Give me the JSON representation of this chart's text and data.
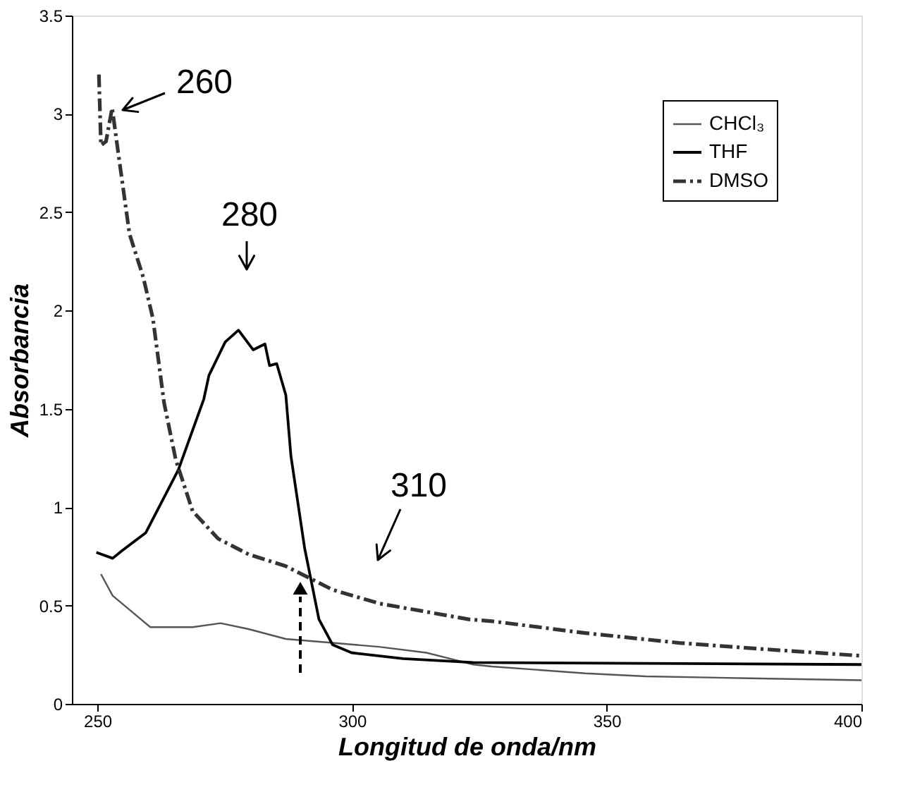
{
  "chart_data": {
    "type": "line",
    "xlabel": "Longitud de onda/nm",
    "ylabel": "Absorbancia",
    "xlim": [
      245,
      400
    ],
    "xticks": [
      250,
      300,
      350,
      400
    ],
    "ylim": [
      0,
      3.5
    ],
    "yticks": [
      0,
      0.5,
      1,
      1.5,
      2,
      2.5,
      3,
      3.5
    ],
    "grid": false,
    "legend": "top right",
    "series": [
      {
        "name": "CHCl₃",
        "color": "#555555",
        "line_style": "solid",
        "x": [
          250.7,
          253,
          258.1,
          260.4,
          268.7,
          274.2,
          279.7,
          287,
          296.2,
          305.3,
          314.6,
          319.2,
          323.8,
          327.4,
          345.8,
          357.7,
          378,
          400
        ],
        "values": [
          0.66,
          0.55,
          0.44,
          0.39,
          0.39,
          0.41,
          0.38,
          0.33,
          0.31,
          0.29,
          0.26,
          0.23,
          0.2,
          0.19,
          0.155,
          0.14,
          0.13,
          0.12
        ]
      },
      {
        "name": "THF",
        "color": "#000000",
        "line_style": "solid",
        "x": [
          249.8,
          253,
          254.9,
          259.5,
          265.9,
          270.9,
          271.9,
          275.1,
          277.7,
          280.6,
          282.9,
          283.8,
          285.2,
          287,
          288,
          290.7,
          293.5,
          296.2,
          299.9,
          310,
          323.8,
          400
        ],
        "values": [
          0.77,
          0.74,
          0.78,
          0.87,
          1.19,
          1.55,
          1.67,
          1.84,
          1.9,
          1.8,
          1.83,
          1.72,
          1.73,
          1.57,
          1.26,
          0.79,
          0.43,
          0.3,
          0.26,
          0.23,
          0.21,
          0.2
        ]
      },
      {
        "name": "DMSO",
        "color": "#333333",
        "line_style": "dashed",
        "x": [
          250.3,
          250.7,
          251.7,
          252.9,
          254,
          256.3,
          259,
          260.9,
          263.1,
          265.4,
          268.7,
          273.7,
          279.7,
          287,
          296.2,
          305.4,
          322.9,
          327.5,
          345.8,
          364.2,
          382.6,
          399.6
        ],
        "values": [
          3.2,
          2.84,
          2.86,
          3.03,
          2.82,
          2.39,
          2.17,
          1.96,
          1.53,
          1.24,
          0.98,
          0.84,
          0.76,
          0.7,
          0.58,
          0.51,
          0.43,
          0.42,
          0.36,
          0.31,
          0.275,
          0.245
        ]
      }
    ],
    "annotations": [
      "260",
      "280",
      "310"
    ]
  }
}
